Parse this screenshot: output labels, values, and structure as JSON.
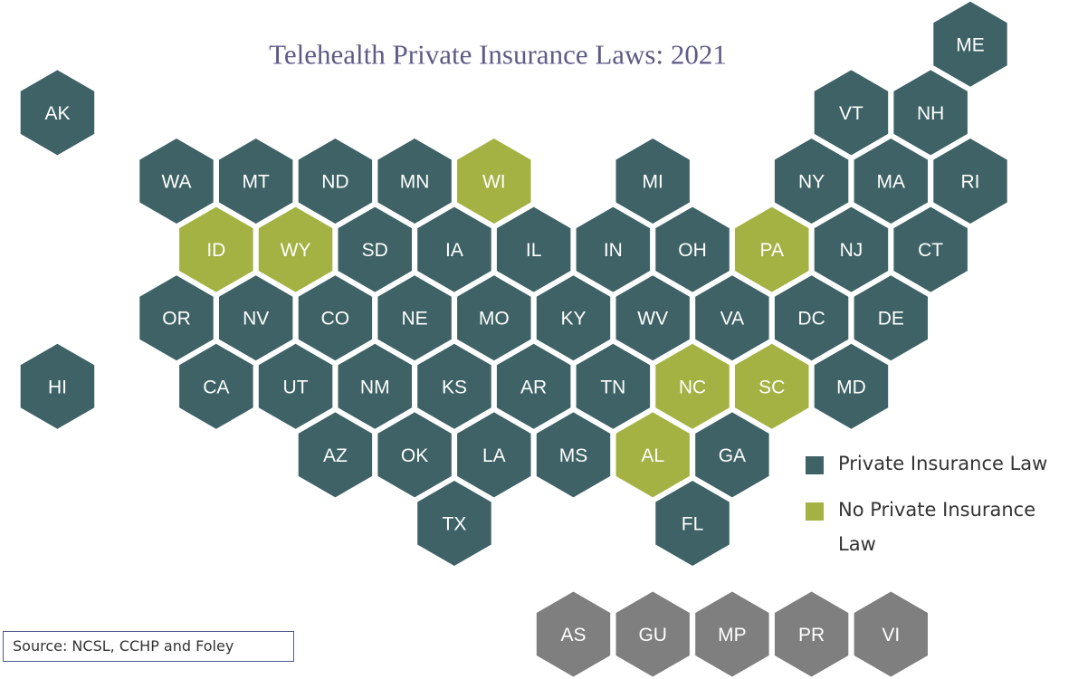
{
  "title": "Telehealth Private Insurance Laws: 2021",
  "source": "Source: NCSL, CCHP and Foley",
  "groups": [
    {
      "name": "Private Insurance Law",
      "color": "#3e6265",
      "states": [
        "ME",
        "AK",
        "VT",
        "NH",
        "WA",
        "MT",
        "ND",
        "MN",
        "MI",
        "NY",
        "MA",
        "RI",
        "SD",
        "IA",
        "IL",
        "IN",
        "OH",
        "NJ",
        "CT",
        "OR",
        "NV",
        "CO",
        "NE",
        "MO",
        "KY",
        "WV",
        "VA",
        "DC",
        "DE",
        "HI",
        "CA",
        "UT",
        "NM",
        "KS",
        "AR",
        "TN",
        "MD",
        "AZ",
        "OK",
        "LA",
        "MS",
        "GA",
        "TX",
        "FL"
      ]
    },
    {
      "name": "No Private Insurance Law",
      "color": "#a4b143",
      "states": [
        "WI",
        "ID",
        "WY",
        "PA",
        "NC",
        "SC",
        "AL"
      ]
    },
    {
      "color": "#7f7f7f",
      "states": [
        "AS",
        "GU",
        "MP",
        "PR",
        "VI"
      ]
    }
  ]
}
